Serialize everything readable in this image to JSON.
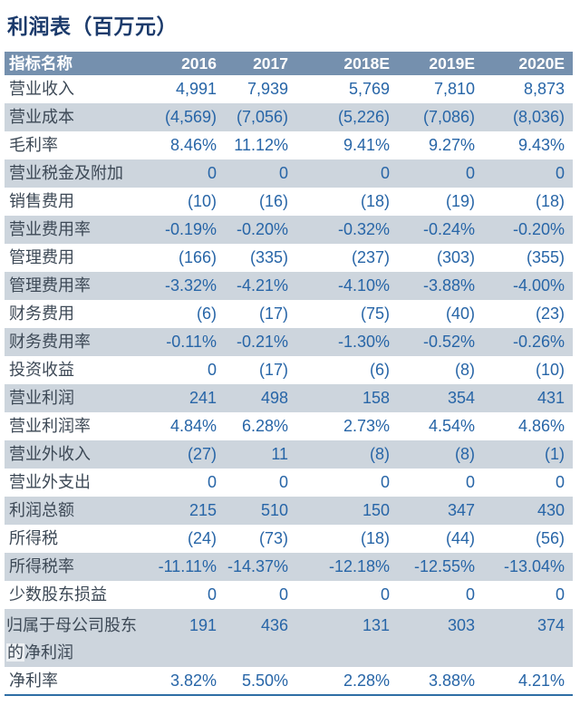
{
  "title": "利润表（百万元）",
  "colors": {
    "title_text": "#1b3a6b",
    "header_bg": "#7590ae",
    "header_text": "#ffffff",
    "band_bg": "#cdd5dd",
    "number_text": "#2765a7",
    "label_text": "#3d4956",
    "bottom_border": "#2f6ea5",
    "highlight_bg": "#eef1f4"
  },
  "table": {
    "header": {
      "label_column": "指标名称",
      "year_columns": [
        "2016",
        "2017",
        "2018E",
        "2019E",
        "2020E"
      ]
    },
    "rows": [
      {
        "label": "营业收入",
        "values": [
          "4,991",
          "7,939",
          "5,769",
          "7,810",
          "8,873"
        ]
      },
      {
        "label": "营业成本",
        "values": [
          "(4,569)",
          "(7,056)",
          "(5,226)",
          "(7,086)",
          "(8,036)"
        ]
      },
      {
        "label": "毛利率",
        "values": [
          "8.46%",
          "11.12%",
          "9.41%",
          "9.27%",
          "9.43%"
        ]
      },
      {
        "label": "营业税金及附加",
        "values": [
          "0",
          "0",
          "0",
          "0",
          "0"
        ]
      },
      {
        "label": "销售费用",
        "values": [
          "(10)",
          "(16)",
          "(18)",
          "(19)",
          "(18)"
        ]
      },
      {
        "label": "营业费用率",
        "values": [
          "-0.19%",
          "-0.20%",
          "-0.32%",
          "-0.24%",
          "-0.20%"
        ]
      },
      {
        "label": "管理费用",
        "values": [
          "(166)",
          "(335)",
          "(237)",
          "(303)",
          "(355)"
        ]
      },
      {
        "label": "管理费用率",
        "values": [
          "-3.32%",
          "-4.21%",
          "-4.10%",
          "-3.88%",
          "-4.00%"
        ]
      },
      {
        "label": "财务费用",
        "values": [
          "(6)",
          "(17)",
          "(75)",
          "(40)",
          "(23)"
        ]
      },
      {
        "label": "财务费用率",
        "values": [
          "-0.11%",
          "-0.21%",
          "-1.30%",
          "-0.52%",
          "-0.26%"
        ]
      },
      {
        "label": "投资收益",
        "values": [
          "0",
          "(17)",
          "(6)",
          "(8)",
          "(10)"
        ]
      },
      {
        "label": "营业利润",
        "values": [
          "241",
          "498",
          "158",
          "354",
          "431"
        ]
      },
      {
        "label": "营业利润率",
        "values": [
          "4.84%",
          "6.28%",
          "2.73%",
          "4.54%",
          "4.86%"
        ]
      },
      {
        "label": "营业外收入",
        "values": [
          "(27)",
          "11",
          "(8)",
          "(8)",
          "(1)"
        ]
      },
      {
        "label": "营业外支出",
        "values": [
          "0",
          "0",
          "0",
          "0",
          "0"
        ]
      },
      {
        "label": "利润总额",
        "values": [
          "215",
          "510",
          "150",
          "347",
          "430"
        ]
      },
      {
        "label": "所得税",
        "values": [
          "(24)",
          "(73)",
          "(18)",
          "(44)",
          "(56)"
        ]
      },
      {
        "label": "所得税率",
        "values": [
          "-11.11%",
          "-14.37%",
          "-12.18%",
          "-12.55%",
          "-13.04%"
        ]
      },
      {
        "label": "少数股东损益",
        "values": [
          "0",
          "0",
          "0",
          "0",
          "0"
        ]
      },
      {
        "label": "归属于母公司股东的净利润",
        "label_parts": [
          "归属于母公司股东",
          "的",
          "净利润"
        ],
        "tall": true,
        "values": [
          "191",
          "436",
          "131",
          "303",
          "374"
        ]
      },
      {
        "label": "净利率",
        "values": [
          "3.82%",
          "5.50%",
          "2.28%",
          "3.88%",
          "4.21%"
        ]
      }
    ]
  }
}
